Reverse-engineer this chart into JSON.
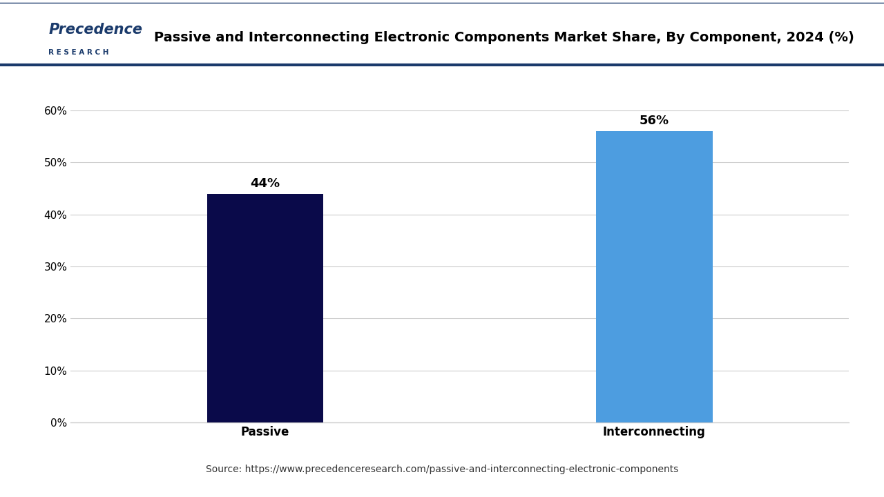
{
  "title": "Passive and Interconnecting Electronic Components Market Share, By Component, 2024 (%)",
  "categories": [
    "Passive",
    "Interconnecting"
  ],
  "values": [
    44,
    56
  ],
  "bar_colors": [
    "#0a0a4a",
    "#4d9de0"
  ],
  "label_texts": [
    "44%",
    "56%"
  ],
  "yticks": [
    0,
    10,
    20,
    30,
    40,
    50,
    60
  ],
  "ytick_labels": [
    "0%",
    "10%",
    "20%",
    "30%",
    "40%",
    "50%",
    "60%"
  ],
  "ylim": [
    0,
    65
  ],
  "source_text": "Source: https://www.precedenceresearch.com/passive-and-interconnecting-electronic-components",
  "background_color": "#ffffff",
  "grid_color": "#cccccc",
  "bar_label_fontsize": 13,
  "title_fontsize": 14,
  "tick_label_fontsize": 11,
  "category_fontsize": 12,
  "source_fontsize": 10,
  "header_line_color": "#1a3a6b",
  "logo_color": "#1a3a6b"
}
